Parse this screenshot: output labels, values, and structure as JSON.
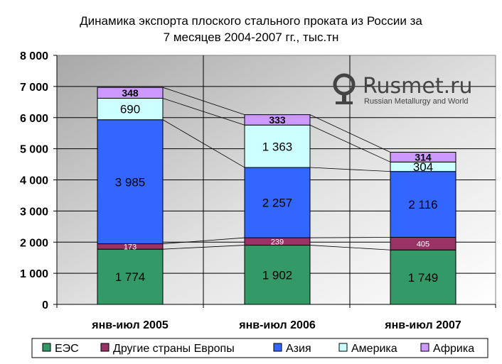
{
  "chart_data": {
    "type": "bar",
    "stacked": true,
    "title_lines": [
      "Динамика экспорта плоского стального проката из России за",
      "7 месяцев 2004-2007 гг., тыс.тн"
    ],
    "categories": [
      "янв-июл 2005",
      "янв-июл 2006",
      "янв-июл 2007"
    ],
    "series": [
      {
        "name": "ЕЭС",
        "values": [
          1774,
          1902,
          1749
        ],
        "labels": [
          "1 774",
          "1 902",
          "1 749"
        ],
        "color": "#339966",
        "label_color": "#000000",
        "label_size": "large"
      },
      {
        "name": "Другие страны Европы",
        "values": [
          173,
          239,
          405
        ],
        "labels": [
          "173",
          "239",
          "405"
        ],
        "color": "#993366",
        "label_color": "#ffffff",
        "label_size": "small"
      },
      {
        "name": "Азия",
        "values": [
          3985,
          2257,
          2116
        ],
        "labels": [
          "3 985",
          "2 257",
          "2 116"
        ],
        "color": "#3366ff",
        "label_color": "#000000",
        "label_size": "large"
      },
      {
        "name": "Америка",
        "values": [
          690,
          1363,
          304
        ],
        "labels": [
          "690",
          "1 363",
          "304"
        ],
        "color": "#ccffff",
        "label_color": "#000000",
        "label_size": "large"
      },
      {
        "name": "Африка",
        "values": [
          348,
          333,
          314
        ],
        "labels": [
          "348",
          "333",
          "314"
        ],
        "color": "#cc99ff",
        "label_color": "#000000",
        "label_size": "medium"
      }
    ],
    "ylim": [
      0,
      8000
    ],
    "yticks": [
      0,
      1000,
      2000,
      3000,
      4000,
      5000,
      6000,
      7000,
      8000
    ],
    "ytick_labels": [
      "0",
      "1 000",
      "2 000",
      "3 000",
      "4 000",
      "5 000",
      "6 000",
      "7 000",
      "8 000"
    ],
    "grid": true,
    "legend_position": "bottom",
    "plot_background": "#c0c0c0"
  },
  "watermark": {
    "name": "Rusmet.ru",
    "tagline": "Russian Metallurgy and World",
    "icon": "rusmet-logo-icon"
  }
}
